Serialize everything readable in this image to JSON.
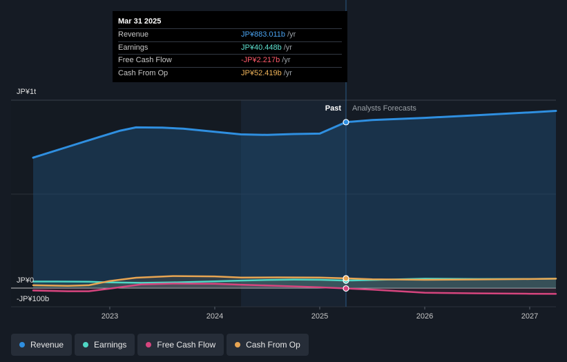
{
  "tooltip": {
    "date": "Mar 31 2025",
    "rows": [
      {
        "label": "Revenue",
        "value": "JP¥883.011b",
        "unit": "/yr",
        "color": "#4aa3f0"
      },
      {
        "label": "Earnings",
        "value": "JP¥40.448b",
        "unit": "/yr",
        "color": "#5fe3d2"
      },
      {
        "label": "Free Cash Flow",
        "value": "-JP¥2.217b",
        "unit": "/yr",
        "color": "#ff5a6a"
      },
      {
        "label": "Cash From Op",
        "value": "JP¥52.419b",
        "unit": "/yr",
        "color": "#f0b45a"
      }
    ]
  },
  "legend": [
    {
      "label": "Revenue",
      "color": "#2f8fe0"
    },
    {
      "label": "Earnings",
      "color": "#4fd6c4"
    },
    {
      "label": "Free Cash Flow",
      "color": "#d6457e"
    },
    {
      "label": "Cash From Op",
      "color": "#e8a552"
    }
  ],
  "chart_data": {
    "type": "line",
    "title": "",
    "xlabel": "",
    "ylabel": "",
    "y_ticks": [
      {
        "label": "JP¥1t",
        "value": 1000
      },
      {
        "label": "JP¥0",
        "value": 0
      },
      {
        "label": "-JP¥100b",
        "value": -100
      }
    ],
    "ylim": [
      -100,
      1000
    ],
    "xlim": [
      2022.27,
      2027.25
    ],
    "x_ticks": [
      {
        "label": "2023",
        "value": 2023
      },
      {
        "label": "2024",
        "value": 2024
      },
      {
        "label": "2025",
        "value": 2025
      },
      {
        "label": "2026",
        "value": 2026
      },
      {
        "label": "2027",
        "value": 2027
      }
    ],
    "past_start": 2024.25,
    "divider": 2025.25,
    "past_label": "Past",
    "forecast_label": "Analysts Forecasts",
    "series": [
      {
        "name": "Revenue",
        "color": "#2f8fe0",
        "points": [
          [
            2022.27,
            694
          ],
          [
            2022.6,
            752
          ],
          [
            2022.9,
            804
          ],
          [
            2023.1,
            838
          ],
          [
            2023.25,
            855
          ],
          [
            2023.5,
            854
          ],
          [
            2023.7,
            848
          ],
          [
            2024.0,
            832
          ],
          [
            2024.25,
            818
          ],
          [
            2024.5,
            815
          ],
          [
            2024.75,
            820
          ],
          [
            2025.0,
            822
          ],
          [
            2025.25,
            883
          ],
          [
            2025.5,
            894
          ],
          [
            2026.0,
            906
          ],
          [
            2026.5,
            920
          ],
          [
            2027.0,
            935
          ],
          [
            2027.25,
            943
          ]
        ]
      },
      {
        "name": "Earnings",
        "color": "#4fd6c4",
        "points": [
          [
            2022.27,
            35
          ],
          [
            2022.5,
            35
          ],
          [
            2022.8,
            34
          ],
          [
            2023.0,
            30
          ],
          [
            2023.3,
            28
          ],
          [
            2023.6,
            30
          ],
          [
            2024.0,
            36
          ],
          [
            2024.25,
            40
          ],
          [
            2024.5,
            43
          ],
          [
            2024.75,
            45
          ],
          [
            2025.0,
            44
          ],
          [
            2025.25,
            40
          ],
          [
            2025.5,
            43
          ],
          [
            2026.0,
            50
          ],
          [
            2026.5,
            48
          ],
          [
            2027.0,
            49
          ],
          [
            2027.25,
            50
          ]
        ]
      },
      {
        "name": "Free Cash Flow",
        "color": "#d6457e",
        "points": [
          [
            2022.27,
            -13
          ],
          [
            2022.6,
            -17
          ],
          [
            2022.8,
            -17
          ],
          [
            2023.0,
            -3
          ],
          [
            2023.3,
            20
          ],
          [
            2023.6,
            24
          ],
          [
            2024.0,
            23
          ],
          [
            2024.25,
            18
          ],
          [
            2024.6,
            12
          ],
          [
            2025.0,
            4
          ],
          [
            2025.25,
            -2
          ],
          [
            2025.5,
            -8
          ],
          [
            2026.0,
            -25
          ],
          [
            2026.5,
            -28
          ],
          [
            2027.0,
            -30
          ],
          [
            2027.25,
            -31
          ]
        ]
      },
      {
        "name": "Cash From Op",
        "color": "#e8a552",
        "points": [
          [
            2022.27,
            15
          ],
          [
            2022.6,
            12
          ],
          [
            2022.8,
            15
          ],
          [
            2023.0,
            38
          ],
          [
            2023.25,
            55
          ],
          [
            2023.6,
            64
          ],
          [
            2024.0,
            62
          ],
          [
            2024.25,
            56
          ],
          [
            2024.6,
            57
          ],
          [
            2025.0,
            56
          ],
          [
            2025.25,
            52
          ],
          [
            2025.5,
            47
          ],
          [
            2026.0,
            44
          ],
          [
            2026.5,
            46
          ],
          [
            2027.0,
            48
          ],
          [
            2027.25,
            50
          ]
        ]
      }
    ]
  }
}
